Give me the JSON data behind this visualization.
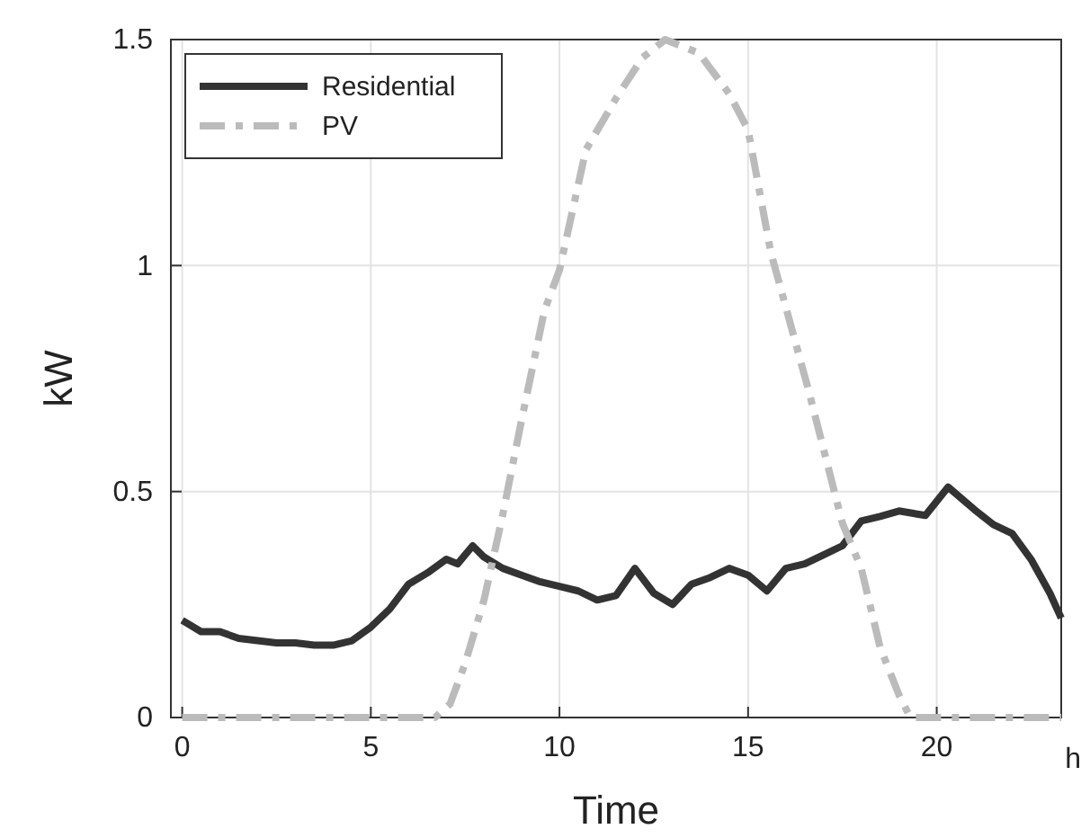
{
  "chart_data": {
    "type": "line",
    "xlabel": "Time",
    "ylabel": "kW",
    "annotations": [
      "h"
    ],
    "xlim": [
      -0.3,
      23.3
    ],
    "ylim": [
      0,
      1.5
    ],
    "xticks": [
      0,
      5,
      10,
      15,
      20
    ],
    "yticks": [
      0,
      {
        "value": 0.5,
        "label": "0.5"
      },
      1,
      {
        "value": 1.5,
        "label": "1.5"
      }
    ],
    "grid": true,
    "legend": "top left",
    "series": [
      {
        "name": "Residential",
        "color": "#333333",
        "line_style": "solid",
        "x": [
          0,
          0.5,
          1,
          1.5,
          2,
          2.5,
          3,
          3.5,
          4,
          4.5,
          5,
          5.5,
          6,
          6.5,
          7,
          7.3,
          7.7,
          8,
          8.5,
          9,
          9.5,
          10,
          10.5,
          11,
          11.5,
          12,
          12.5,
          13,
          13.5,
          14,
          14.5,
          15,
          15.5,
          16,
          16.5,
          17,
          17.5,
          18,
          18.5,
          19,
          19.7,
          20.3,
          21,
          21.5,
          22,
          22.5,
          23,
          23.3
        ],
        "values": [
          0.215,
          0.19,
          0.19,
          0.175,
          0.17,
          0.165,
          0.165,
          0.16,
          0.16,
          0.17,
          0.2,
          0.24,
          0.295,
          0.32,
          0.35,
          0.34,
          0.38,
          0.355,
          0.33,
          0.315,
          0.3,
          0.29,
          0.28,
          0.26,
          0.27,
          0.33,
          0.275,
          0.25,
          0.295,
          0.31,
          0.33,
          0.315,
          0.28,
          0.33,
          0.34,
          0.36,
          0.38,
          0.435,
          0.445,
          0.457,
          0.447,
          0.51,
          0.46,
          0.427,
          0.407,
          0.35,
          0.275,
          0.22
        ]
      },
      {
        "name": "PV",
        "color": "#bbbbbb",
        "line_style": "dashed",
        "x": [
          0,
          6.7,
          7.1,
          7.5,
          8.0,
          8.5,
          9.0,
          9.6,
          10.0,
          10.7,
          11.5,
          12.2,
          12.8,
          13.7,
          14.5,
          15.0,
          15.6,
          16.6,
          17.5,
          18.0,
          18.5,
          19.0,
          19.3,
          23.3
        ],
        "values": [
          0,
          0,
          0.03,
          0.12,
          0.26,
          0.45,
          0.66,
          0.9,
          0.99,
          1.256,
          1.37,
          1.46,
          1.5,
          1.47,
          1.38,
          1.3,
          1.03,
          0.725,
          0.43,
          0.33,
          0.155,
          0.05,
          0,
          0
        ]
      }
    ]
  }
}
